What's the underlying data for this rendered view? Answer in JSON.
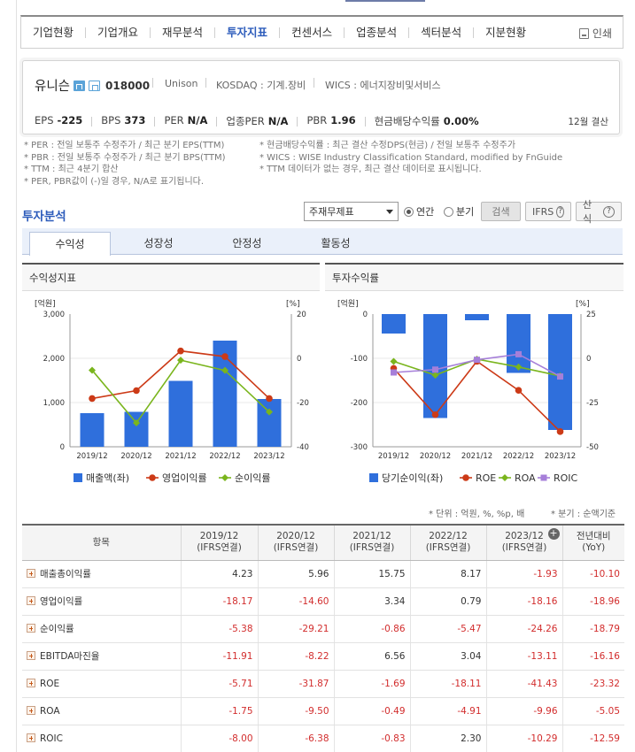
{
  "nav": {
    "items": [
      "기업현황",
      "기업개요",
      "재무분석",
      "투자지표",
      "컨센서스",
      "업종분석",
      "섹터분석",
      "지분현황"
    ],
    "active_index": 3,
    "print_label": "인쇄"
  },
  "company": {
    "name": "유니슨",
    "code": "018000",
    "eng_name": "Unison",
    "market": "KOSDAQ : 기계.장비",
    "wics": "WICS : 에너지장비및서비스",
    "stats": [
      {
        "label": "EPS",
        "value": "-225"
      },
      {
        "label": "BPS",
        "value": "373"
      },
      {
        "label": "PER",
        "value": "N/A"
      },
      {
        "label": "업종PER",
        "value": "N/A"
      },
      {
        "label": "PBR",
        "value": "1.96"
      },
      {
        "label": "현금배당수익률",
        "value": "0.00%"
      }
    ],
    "settlement": "12월 결산"
  },
  "notes": {
    "left": [
      "* PER : 전일 보통주 수정주가 / 최근 분기 EPS(TTM)",
      "* PBR : 전일 보통주 수정주가 / 최근 분기 BPS(TTM)",
      "* TTM : 최근 4분기 합산",
      "* PER, PBR값이 (-)일 경우, N/A로 표기됩니다."
    ],
    "right": [
      "* 현금배당수익률 : 최근 결산 수정DPS(현금) / 전일 보통주 수정주가",
      "* WICS : WISE Industry Classification Standard, modified by FnGuide",
      "* TTM 데이터가 없는 경우, 최근 결산 데이터로 표시됩니다."
    ]
  },
  "section": {
    "title": "투자분석",
    "select_value": "주재무제표",
    "radio_annual": "연간",
    "radio_quarter": "분기",
    "search_button": "검색",
    "ifrs_button": "IFRS",
    "formula_button": "산식",
    "tabs": [
      "수익성",
      "성장성",
      "안정성",
      "활동성"
    ],
    "active_tab": 0
  },
  "chart_data": [
    {
      "type": "bar+line",
      "title": "수익성지표",
      "left_unit": "[억원]",
      "right_unit": "[%]",
      "categories": [
        "2019/12",
        "2020/12",
        "2021/12",
        "2022/12",
        "2023/12"
      ],
      "left_ticks": [
        "3,000",
        "2,000",
        "1,000",
        "0"
      ],
      "right_ticks": [
        "20",
        "0",
        "-20",
        "-40"
      ],
      "ylim_left": [
        0,
        3000
      ],
      "ylim_right": [
        -40,
        20
      ],
      "bars": {
        "name": "매출액(좌)",
        "color": "#2f6fdc",
        "values": [
          760,
          790,
          1490,
          2400,
          1080
        ]
      },
      "lines": [
        {
          "name": "영업이익률",
          "color": "#cc3a17",
          "values": [
            -18.17,
            -14.6,
            3.34,
            0.79,
            -18.16
          ]
        },
        {
          "name": "순이익률",
          "color": "#7ab51d",
          "values": [
            -5.38,
            -29.21,
            -0.86,
            -5.47,
            -24.26
          ]
        }
      ],
      "legend": "bottom"
    },
    {
      "type": "bar+line",
      "title": "투자수익률",
      "left_unit": "[억원]",
      "right_unit": "[%]",
      "categories": [
        "2019/12",
        "2020/12",
        "2021/12",
        "2022/12",
        "2023/12"
      ],
      "left_ticks": [
        "0",
        "-100",
        "-200",
        "-300"
      ],
      "right_ticks": [
        "25",
        "0",
        "-25",
        "-50"
      ],
      "ylim_left": [
        -300,
        0
      ],
      "ylim_right": [
        -50,
        25
      ],
      "bars": {
        "name": "당기순이익(좌)",
        "color": "#2f6fdc",
        "values": [
          -44,
          -235,
          -14,
          -133,
          -262
        ]
      },
      "lines": [
        {
          "name": "ROE",
          "color": "#cc3a17",
          "values": [
            -5.71,
            -31.87,
            -1.69,
            -18.11,
            -41.43
          ]
        },
        {
          "name": "ROA",
          "color": "#7ab51d",
          "values": [
            -1.75,
            -9.5,
            -0.49,
            -4.91,
            -9.96
          ]
        },
        {
          "name": "ROIC",
          "color": "#a67fd9",
          "values": [
            -8.0,
            -6.38,
            -0.83,
            2.3,
            -10.29
          ]
        }
      ],
      "legend": "bottom"
    }
  ],
  "table": {
    "unit_note": "* 단위 : 억원, %, %p, 배",
    "period_note": "* 분기 : 순액기준",
    "header": [
      "항목",
      "2019/12",
      "2020/12",
      "2021/12",
      "2022/12",
      "2023/12",
      "전년대비"
    ],
    "header_sub": [
      "",
      "(IFRS연결)",
      "(IFRS연결)",
      "(IFRS연결)",
      "(IFRS연결)",
      "(IFRS연결)",
      "(YoY)"
    ],
    "rows": [
      {
        "label": "매출총이익률",
        "values": [
          "4.23",
          "5.96",
          "15.75",
          "8.17",
          "-1.93",
          "-10.10"
        ]
      },
      {
        "label": "영업이익률",
        "values": [
          "-18.17",
          "-14.60",
          "3.34",
          "0.79",
          "-18.16",
          "-18.96"
        ]
      },
      {
        "label": "순이익률",
        "values": [
          "-5.38",
          "-29.21",
          "-0.86",
          "-5.47",
          "-24.26",
          "-18.79"
        ]
      },
      {
        "label": "EBITDA마진율",
        "values": [
          "-11.91",
          "-8.22",
          "6.56",
          "3.04",
          "-13.11",
          "-16.16"
        ]
      },
      {
        "label": "ROE",
        "values": [
          "-5.71",
          "-31.87",
          "-1.69",
          "-18.11",
          "-41.43",
          "-23.32"
        ]
      },
      {
        "label": "ROA",
        "values": [
          "-1.75",
          "-9.50",
          "-0.49",
          "-4.91",
          "-9.96",
          "-5.05"
        ]
      },
      {
        "label": "ROIC",
        "values": [
          "-8.00",
          "-6.38",
          "-0.83",
          "2.30",
          "-10.29",
          "-12.59"
        ]
      }
    ]
  }
}
